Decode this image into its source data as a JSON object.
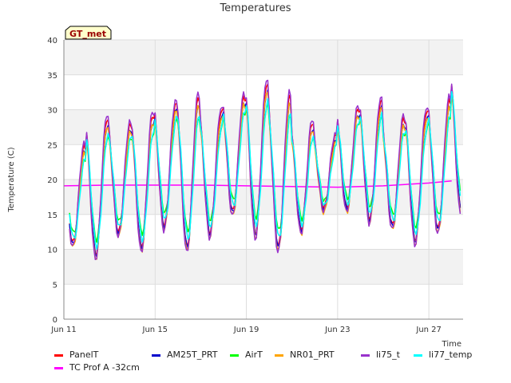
{
  "chart_data": {
    "type": "line",
    "title": "Temperatures",
    "xlabel": "Time",
    "ylabel": "Temperature (C)",
    "ylim": [
      0,
      40
    ],
    "yticks": [
      0,
      5,
      10,
      15,
      20,
      25,
      30,
      35,
      40
    ],
    "x_range": [
      "2023-06-11",
      "2023-06-28"
    ],
    "xticks": [
      {
        "date": "2023-06-11",
        "label": "Jun 11"
      },
      {
        "date": "2023-06-15",
        "label": "Jun 15"
      },
      {
        "date": "2023-06-19",
        "label": "Jun 19"
      },
      {
        "date": "2023-06-23",
        "label": "Jun 23"
      },
      {
        "date": "2023-06-27",
        "label": "Jun 27"
      }
    ],
    "background_bands": "alternating light grey",
    "grid": true,
    "legend_position": "bottom",
    "annotation": "GT_met",
    "daily_extremes": {
      "dates": [
        "2023-06-11",
        "2023-06-12",
        "2023-06-13",
        "2023-06-14",
        "2023-06-15",
        "2023-06-16",
        "2023-06-17",
        "2023-06-18",
        "2023-06-19",
        "2023-06-20",
        "2023-06-21",
        "2023-06-22",
        "2023-06-23",
        "2023-06-24",
        "2023-06-25",
        "2023-06-26",
        "2023-06-27",
        "2023-06-28"
      ],
      "daily_min": [
        10.5,
        9.0,
        12.0,
        10.0,
        13.0,
        10.0,
        12.0,
        15.0,
        12.0,
        10.0,
        12.5,
        15.5,
        15.5,
        14.0,
        13.0,
        11.0,
        12.5,
        15.5
      ],
      "daily_max": [
        24.0,
        28.0,
        27.0,
        28.5,
        30.0,
        31.0,
        29.0,
        31.0,
        33.0,
        31.0,
        27.5,
        25.5,
        29.5,
        30.5,
        28.0,
        29.0,
        30.5,
        35.0
      ]
    },
    "series": [
      {
        "name": "PanelT",
        "color": "#ff0000"
      },
      {
        "name": "TC Prof A -32cm",
        "color": "#ff00ff",
        "x": [
          "2023-06-11",
          "2023-06-13",
          "2023-06-15",
          "2023-06-17",
          "2023-06-19",
          "2023-06-21",
          "2023-06-23",
          "2023-06-25",
          "2023-06-27",
          "2023-06-28"
        ],
        "values": [
          19.1,
          19.2,
          19.2,
          19.2,
          19.1,
          19.0,
          18.9,
          19.1,
          19.5,
          19.8
        ]
      },
      {
        "name": "AM25T_PRT",
        "color": "#0000cc"
      },
      {
        "name": "AirT",
        "color": "#00ff00"
      },
      {
        "name": "NR01_PRT",
        "color": "#ffa500"
      },
      {
        "name": "li75_t",
        "color": "#9932cc"
      },
      {
        "name": "li77_temp",
        "color": "#00ffff"
      }
    ]
  }
}
